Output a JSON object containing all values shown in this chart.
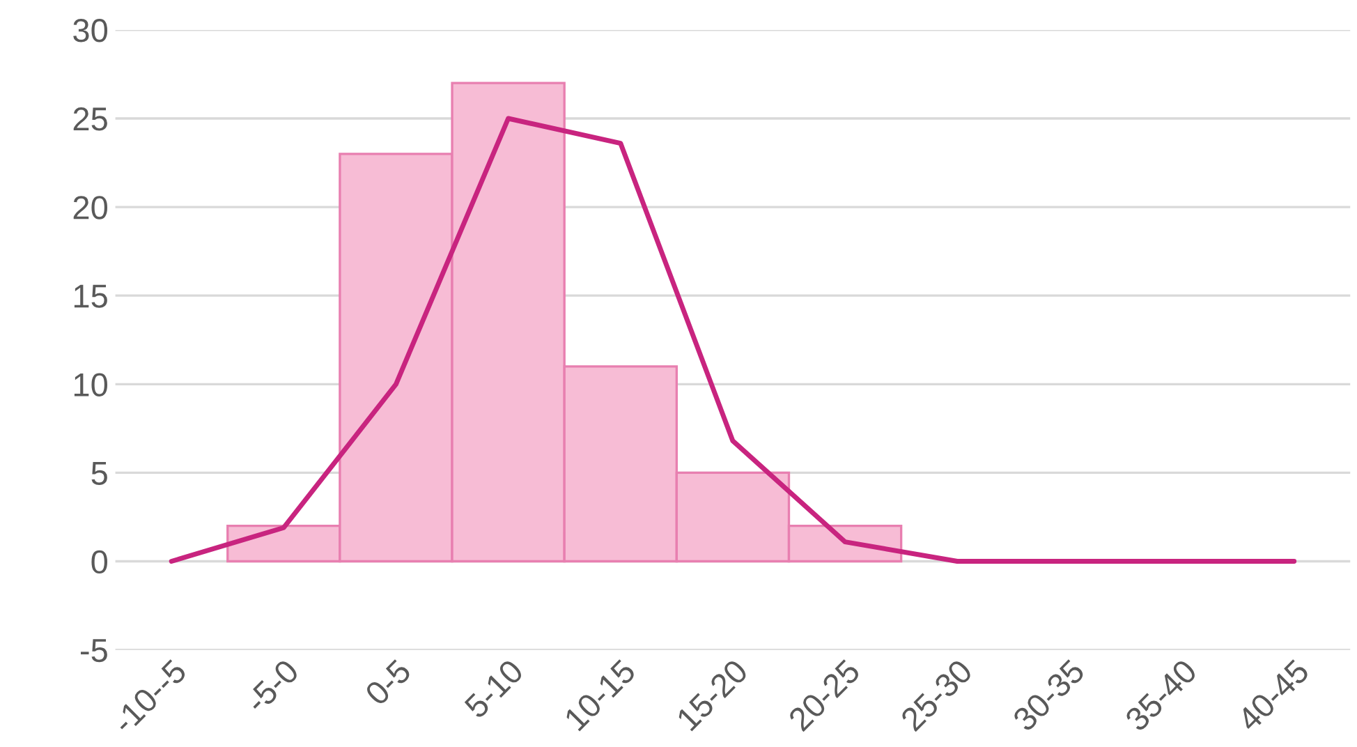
{
  "chart_data": {
    "type": "bar",
    "categories": [
      "-10--5",
      "-5-0",
      "0-5",
      "5-10",
      "10-15",
      "15-20",
      "20-25",
      "25-30",
      "30-35",
      "35-40",
      "40-45"
    ],
    "series": [
      {
        "color": "#f7bcd5",
        "values": [
          0,
          2,
          23,
          27,
          11,
          5,
          2,
          0,
          0,
          0,
          0
        ]
      },
      {
        "type": "line",
        "color": "#c8247f",
        "values": [
          0,
          1.9,
          10,
          25,
          23.6,
          6.8,
          1.1,
          0,
          0,
          0,
          0
        ]
      }
    ],
    "ylim": [
      -5,
      30
    ],
    "yticks": [
      -5,
      0,
      5,
      10,
      15,
      20,
      25,
      30
    ],
    "grid": "y",
    "legend": false
  }
}
